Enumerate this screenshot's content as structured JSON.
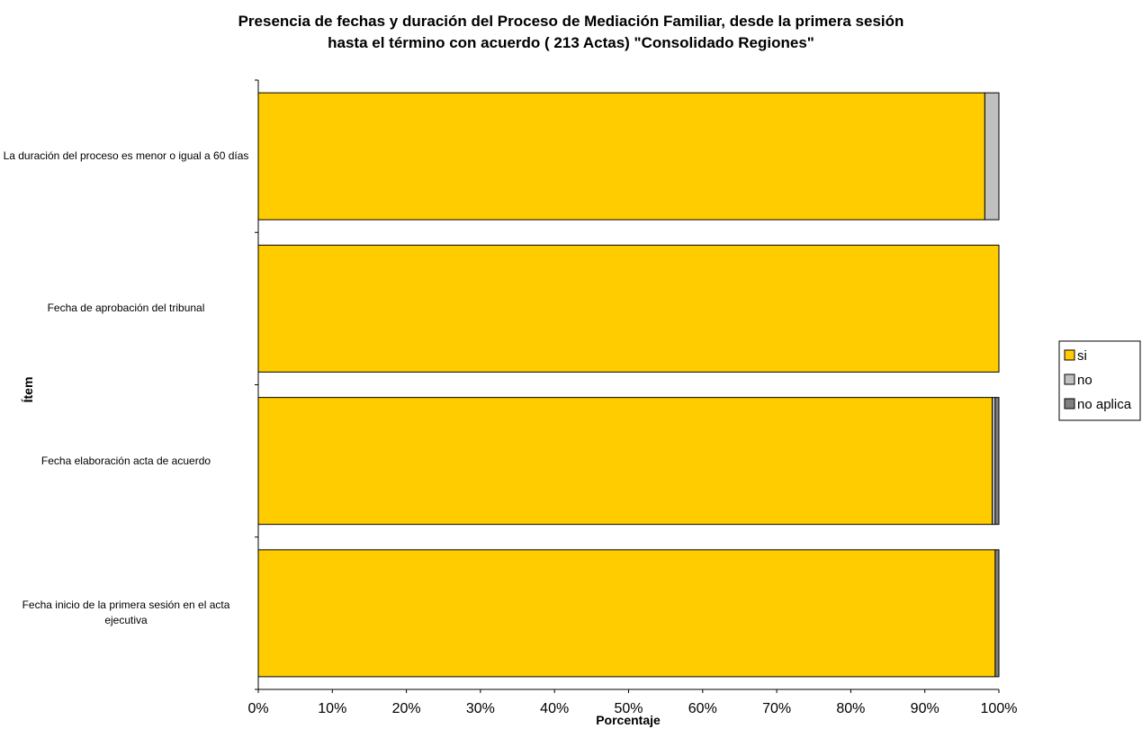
{
  "chart_data": {
    "type": "bar",
    "orientation": "horizontal",
    "stacked": "percent",
    "title_line1": "Presencia de fechas y duración del Proceso de Mediación Familiar, desde la primera sesión",
    "title_line2": "hasta el término con acuerdo ( 213 Actas)     \"Consolidado Regiones\"",
    "xlabel": "Porcentaje",
    "ylabel": "Ítem",
    "xlim": [
      0,
      100
    ],
    "x_ticks": [
      "0%",
      "10%",
      "20%",
      "30%",
      "40%",
      "50%",
      "60%",
      "70%",
      "80%",
      "90%",
      "100%"
    ],
    "categories": [
      "La duración del proceso es menor o igual a 60 días",
      "Fecha de aprobación del tribunal",
      "Fecha elaboración acta de acuerdo",
      "Fecha inicio de la primera sesión en el acta ejecutiva"
    ],
    "series": [
      {
        "name": "si",
        "color": "#FFCC00",
        "values": [
          98.1,
          100,
          99.1,
          99.5
        ]
      },
      {
        "name": "no",
        "color": "#C0C0C0",
        "values": [
          1.9,
          0,
          0.4,
          0
        ]
      },
      {
        "name": "no aplica",
        "color": "#808080",
        "values": [
          0,
          0,
          0.5,
          0.5
        ]
      }
    ],
    "legend_position": "right",
    "grid": false
  }
}
